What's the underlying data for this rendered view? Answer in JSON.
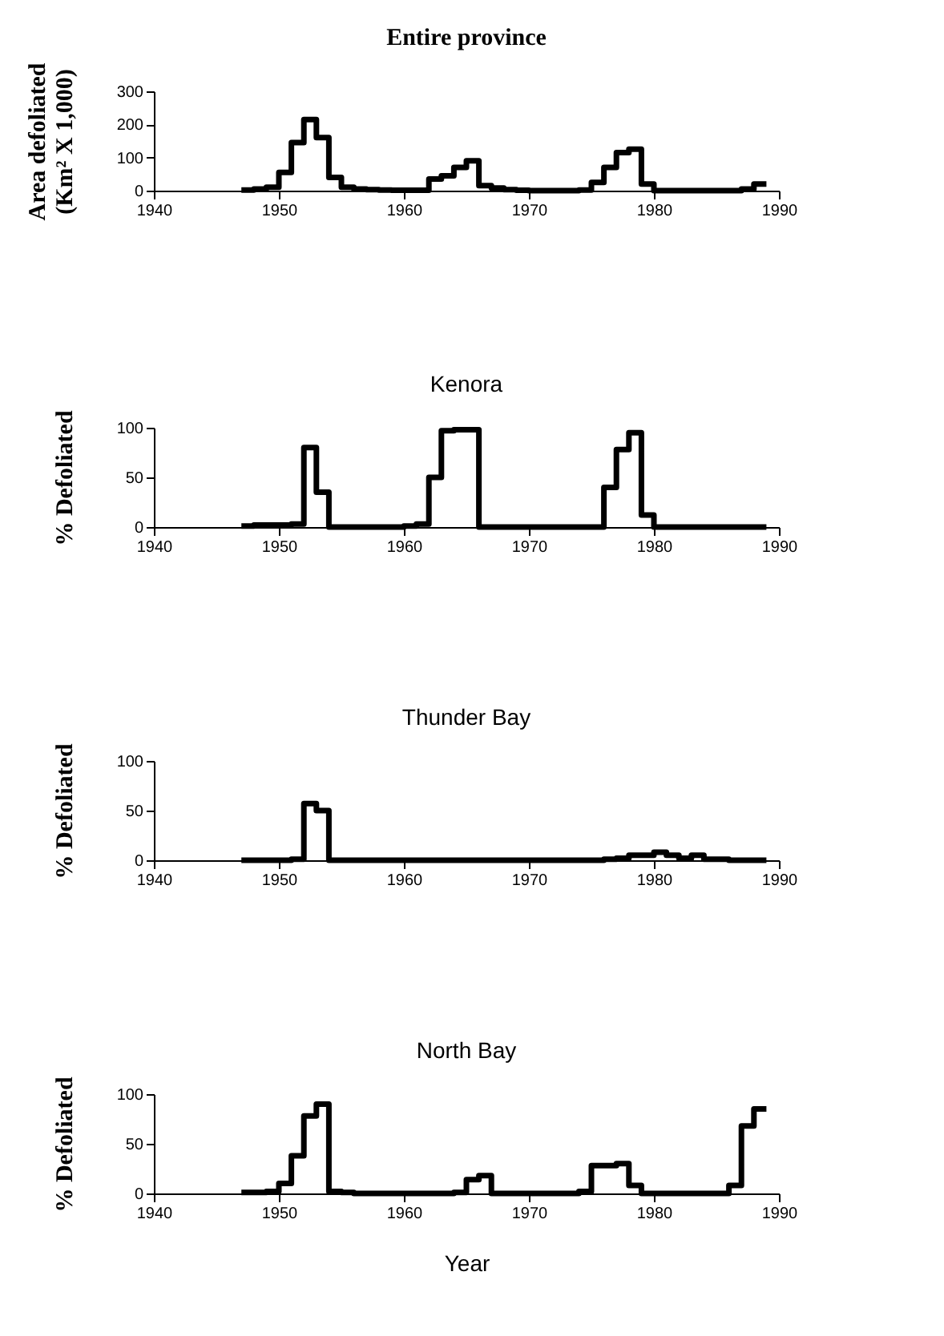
{
  "chart_data": [
    {
      "type": "step",
      "title": "Entire province",
      "ylabel": "Area defoliated\n(Km² X 1,000)",
      "x": [
        1947,
        1948,
        1949,
        1950,
        1951,
        1952,
        1953,
        1954,
        1955,
        1956,
        1957,
        1958,
        1959,
        1960,
        1961,
        1962,
        1963,
        1964,
        1965,
        1966,
        1967,
        1968,
        1969,
        1970,
        1971,
        1972,
        1973,
        1974,
        1975,
        1976,
        1977,
        1978,
        1979,
        1980,
        1981,
        1982,
        1983,
        1984,
        1985,
        1986,
        1987,
        1988,
        1989
      ],
      "series": [
        {
          "color": "#000000",
          "values": [
            2,
            5,
            10,
            55,
            145,
            215,
            160,
            40,
            10,
            5,
            3,
            2,
            1,
            1,
            1,
            35,
            45,
            70,
            90,
            15,
            8,
            3,
            1,
            0,
            0,
            0,
            0,
            2,
            25,
            70,
            115,
            125,
            20,
            0,
            0,
            0,
            0,
            0,
            0,
            0,
            5,
            20,
            20
          ]
        }
      ],
      "xlim": [
        1940,
        1990
      ],
      "xticks": [
        1940,
        1950,
        1960,
        1970,
        1980,
        1990
      ],
      "ylim": [
        0,
        300
      ],
      "yticks": [
        0,
        100,
        200,
        300
      ],
      "grid": false
    },
    {
      "type": "step",
      "title": "Kenora",
      "ylabel": "% Defoliated",
      "x": [
        1947,
        1948,
        1949,
        1950,
        1951,
        1952,
        1953,
        1954,
        1955,
        1956,
        1957,
        1958,
        1959,
        1960,
        1961,
        1962,
        1963,
        1964,
        1965,
        1966,
        1967,
        1968,
        1969,
        1970,
        1971,
        1972,
        1973,
        1974,
        1975,
        1976,
        1977,
        1978,
        1979,
        1980,
        1981,
        1982,
        1983,
        1984,
        1985,
        1986,
        1987,
        1988,
        1989
      ],
      "series": [
        {
          "color": "#000000",
          "values": [
            1,
            2,
            2,
            2,
            3,
            80,
            35,
            0,
            0,
            0,
            0,
            0,
            0,
            1,
            3,
            50,
            97,
            98,
            98,
            0,
            0,
            0,
            0,
            0,
            0,
            0,
            0,
            0,
            0,
            40,
            78,
            95,
            12,
            0,
            0,
            0,
            0,
            0,
            0,
            0,
            0,
            0,
            0
          ]
        }
      ],
      "xlim": [
        1940,
        1990
      ],
      "xticks": [
        1940,
        1950,
        1960,
        1970,
        1980,
        1990
      ],
      "ylim": [
        0,
        100
      ],
      "yticks": [
        0,
        50,
        100
      ],
      "grid": false
    },
    {
      "type": "step",
      "title": "Thunder Bay",
      "ylabel": "% Defoliated",
      "x": [
        1947,
        1948,
        1949,
        1950,
        1951,
        1952,
        1953,
        1954,
        1955,
        1956,
        1957,
        1958,
        1959,
        1960,
        1961,
        1962,
        1963,
        1964,
        1965,
        1966,
        1967,
        1968,
        1969,
        1970,
        1971,
        1972,
        1973,
        1974,
        1975,
        1976,
        1977,
        1978,
        1979,
        1980,
        1981,
        1982,
        1983,
        1984,
        1985,
        1986,
        1987,
        1988,
        1989
      ],
      "series": [
        {
          "color": "#000000",
          "values": [
            0,
            0,
            0,
            0,
            1,
            57,
            50,
            0,
            0,
            0,
            0,
            0,
            0,
            0,
            0,
            0,
            0,
            0,
            0,
            0,
            0,
            0,
            0,
            0,
            0,
            0,
            0,
            0,
            0,
            1,
            2,
            5,
            5,
            8,
            5,
            2,
            5,
            1,
            1,
            0,
            0,
            0,
            0
          ]
        }
      ],
      "xlim": [
        1940,
        1990
      ],
      "xticks": [
        1940,
        1950,
        1960,
        1970,
        1980,
        1990
      ],
      "ylim": [
        0,
        100
      ],
      "yticks": [
        0,
        50,
        100
      ],
      "grid": false
    },
    {
      "type": "step",
      "title": "North Bay",
      "ylabel": "% Defoliated",
      "xlabel": "Year",
      "x": [
        1947,
        1948,
        1949,
        1950,
        1951,
        1952,
        1953,
        1954,
        1955,
        1956,
        1957,
        1958,
        1959,
        1960,
        1961,
        1962,
        1963,
        1964,
        1965,
        1966,
        1967,
        1968,
        1969,
        1970,
        1971,
        1972,
        1973,
        1974,
        1975,
        1976,
        1977,
        1978,
        1979,
        1980,
        1981,
        1982,
        1983,
        1984,
        1985,
        1986,
        1987,
        1988,
        1989
      ],
      "series": [
        {
          "color": "#000000",
          "values": [
            1,
            1,
            2,
            10,
            38,
            78,
            90,
            2,
            1,
            0,
            0,
            0,
            0,
            0,
            0,
            0,
            0,
            1,
            14,
            18,
            0,
            0,
            0,
            0,
            0,
            0,
            0,
            2,
            28,
            28,
            30,
            8,
            0,
            0,
            0,
            0,
            0,
            0,
            0,
            8,
            68,
            85,
            85
          ]
        }
      ],
      "xlim": [
        1940,
        1990
      ],
      "xticks": [
        1940,
        1950,
        1960,
        1970,
        1980,
        1990
      ],
      "ylim": [
        0,
        100
      ],
      "yticks": [
        0,
        50,
        100
      ],
      "grid": false
    }
  ]
}
